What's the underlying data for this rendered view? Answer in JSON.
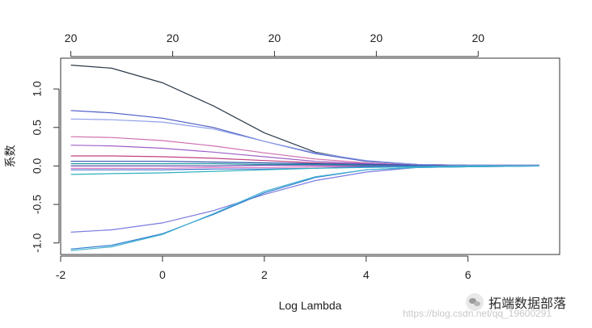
{
  "chart_data": {
    "type": "line",
    "title": "",
    "xlabel": "Log Lambda",
    "ylabel": "系数",
    "xlim": [
      -2.0,
      7.8
    ],
    "ylim": [
      -1.15,
      1.4
    ],
    "x_ticks": [
      -2,
      0,
      2,
      4,
      6
    ],
    "x_tick_labels": [
      "-2",
      "0",
      "2",
      "4",
      "6"
    ],
    "y_ticks": [
      -1.0,
      -0.5,
      0.0,
      0.5,
      1.0
    ],
    "y_tick_labels": [
      "-1.0",
      "-0.5",
      "0.0",
      "0.5",
      "1.0"
    ],
    "top_axis": {
      "positions": [
        -1.8,
        0.2,
        2.2,
        4.2,
        6.2
      ],
      "labels": [
        "20",
        "20",
        "20",
        "20",
        "20"
      ]
    },
    "x": [
      -1.8,
      -1.0,
      0.0,
      1.0,
      2.0,
      3.0,
      4.0,
      5.0,
      6.0,
      7.4
    ],
    "series": [
      {
        "color": "#2b3a4a",
        "values": [
          1.31,
          1.27,
          1.08,
          0.78,
          0.43,
          0.18,
          0.06,
          0.02,
          0.01,
          0.01
        ]
      },
      {
        "color": "#4a5bc4",
        "values": [
          0.72,
          0.69,
          0.62,
          0.5,
          0.32,
          0.16,
          0.06,
          0.02,
          0.01,
          0.01
        ]
      },
      {
        "color": "#8fa0e8",
        "values": [
          0.61,
          0.6,
          0.57,
          0.48,
          0.32,
          0.17,
          0.07,
          0.02,
          0.01,
          0.01
        ]
      },
      {
        "color": "#d070b0",
        "values": [
          0.38,
          0.37,
          0.33,
          0.26,
          0.17,
          0.09,
          0.04,
          0.01,
          0.0,
          0.0
        ]
      },
      {
        "color": "#a060c8",
        "values": [
          0.27,
          0.26,
          0.23,
          0.18,
          0.12,
          0.06,
          0.03,
          0.01,
          0.0,
          0.0
        ]
      },
      {
        "color": "#c04080",
        "values": [
          0.13,
          0.13,
          0.12,
          0.1,
          0.07,
          0.04,
          0.02,
          0.01,
          0.0,
          0.0
        ]
      },
      {
        "color": "#3050b0",
        "values": [
          0.06,
          0.06,
          0.06,
          0.05,
          0.04,
          0.03,
          0.02,
          0.01,
          0.0,
          0.0
        ]
      },
      {
        "color": "#20a0a0",
        "values": [
          0.03,
          0.03,
          0.03,
          0.03,
          0.02,
          0.02,
          0.01,
          0.0,
          0.0,
          0.0
        ]
      },
      {
        "color": "#6a4cb0",
        "values": [
          0.0,
          0.0,
          0.0,
          0.0,
          0.01,
          0.01,
          0.0,
          0.0,
          0.0,
          0.0
        ]
      },
      {
        "color": "#e070c0",
        "values": [
          -0.03,
          -0.03,
          -0.03,
          -0.02,
          -0.02,
          -0.01,
          -0.01,
          0.0,
          0.0,
          0.0
        ]
      },
      {
        "color": "#4070d0",
        "values": [
          -0.05,
          -0.05,
          -0.05,
          -0.04,
          -0.04,
          -0.03,
          -0.01,
          0.0,
          0.0,
          0.0
        ]
      },
      {
        "color": "#30b0c0",
        "values": [
          -0.11,
          -0.1,
          -0.09,
          -0.07,
          -0.05,
          -0.03,
          -0.02,
          -0.01,
          0.0,
          0.0
        ]
      },
      {
        "color": "#7a7ae0",
        "values": [
          -0.86,
          -0.83,
          -0.74,
          -0.58,
          -0.37,
          -0.19,
          -0.08,
          -0.02,
          -0.01,
          0.0
        ]
      },
      {
        "color": "#2f7fd0",
        "values": [
          -1.08,
          -1.03,
          -0.88,
          -0.63,
          -0.35,
          -0.15,
          -0.05,
          -0.02,
          -0.01,
          0.0
        ]
      },
      {
        "color": "#40b0d0",
        "values": [
          -1.1,
          -1.05,
          -0.89,
          -0.62,
          -0.33,
          -0.14,
          -0.05,
          -0.02,
          -0.01,
          0.0
        ]
      }
    ]
  },
  "watermark": {
    "text": "拓端数据部落",
    "url": "https://blog.csdn.net/qq_19600291"
  }
}
